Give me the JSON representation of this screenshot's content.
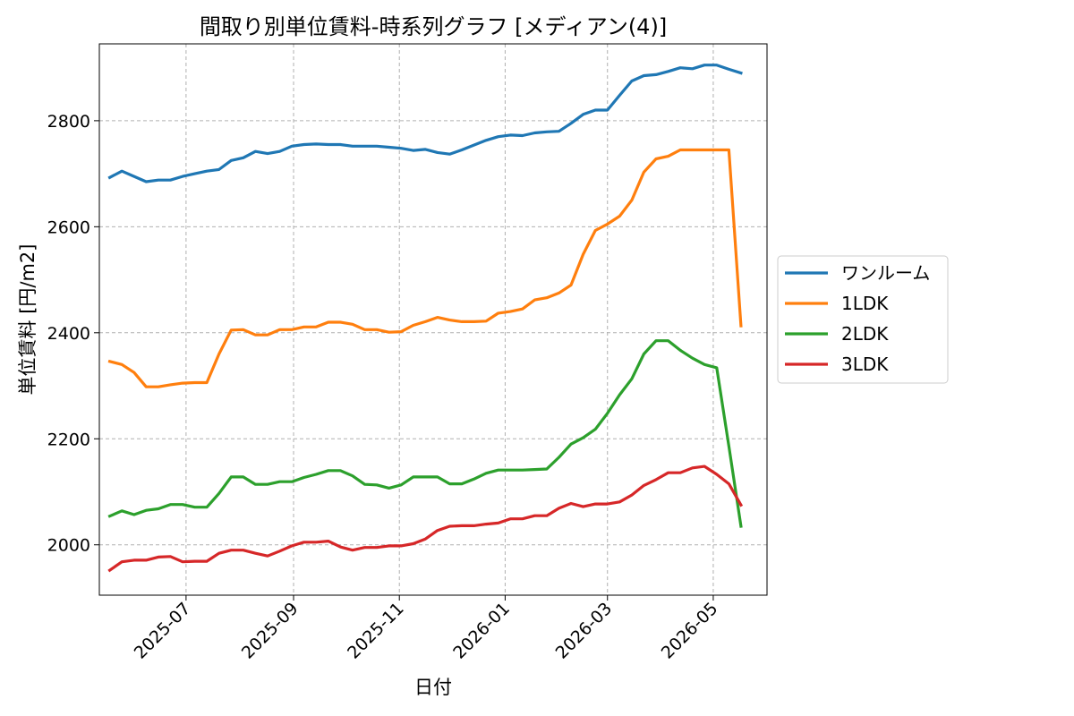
{
  "chart_data": {
    "type": "line",
    "title": "間取り別単位賃料-時系列グラフ [メディアン(4)]",
    "xlabel": "日付",
    "ylabel": "単位賃料 [円/m2]",
    "x_ticks": [
      "2025-07",
      "2025-09",
      "2025-11",
      "2026-01",
      "2026-03",
      "2026-05"
    ],
    "y_ticks": [
      2000,
      2200,
      2400,
      2600,
      2800
    ],
    "ylim": [
      1905,
      2945
    ],
    "xlim": [
      "2025-05-12",
      "2026-06-01"
    ],
    "grid": true,
    "legend_position": "right-outside",
    "x": [
      "2025-05-18",
      "2025-05-25",
      "2025-06-01",
      "2025-06-08",
      "2025-06-15",
      "2025-06-22",
      "2025-06-29",
      "2025-07-06",
      "2025-07-13",
      "2025-07-20",
      "2025-07-27",
      "2025-08-03",
      "2025-08-10",
      "2025-08-17",
      "2025-08-24",
      "2025-08-31",
      "2025-09-07",
      "2025-09-14",
      "2025-09-21",
      "2025-09-28",
      "2025-10-05",
      "2025-10-12",
      "2025-10-19",
      "2025-10-26",
      "2025-11-02",
      "2025-11-09",
      "2025-11-16",
      "2025-11-23",
      "2025-11-30",
      "2025-12-07",
      "2025-12-14",
      "2025-12-21",
      "2025-12-28",
      "2026-01-04",
      "2026-01-11",
      "2026-01-18",
      "2026-01-25",
      "2026-02-01",
      "2026-02-08",
      "2026-02-15",
      "2026-02-22",
      "2026-03-01",
      "2026-03-08",
      "2026-03-15",
      "2026-03-22",
      "2026-03-29",
      "2026-04-05",
      "2026-04-12",
      "2026-04-19",
      "2026-04-26",
      "2026-05-03",
      "2026-05-10",
      "2026-05-17"
    ],
    "series": [
      {
        "name": "ワンルーム",
        "color": "#1f77b4",
        "values": [
          2693,
          2705,
          2695,
          2685,
          2688,
          2688,
          2695,
          2700,
          2705,
          2708,
          2725,
          2730,
          2742,
          2738,
          2742,
          2752,
          2755,
          2756,
          2755,
          2755,
          2752,
          2752,
          2752,
          2750,
          2748,
          2744,
          2746,
          2740,
          2737,
          2745,
          2754,
          2763,
          2770,
          2773,
          2772,
          2777,
          2779,
          2780,
          2795,
          2812,
          2820,
          2820,
          2848,
          2875,
          2885,
          2887,
          2893,
          2900,
          2898,
          2905,
          2905,
          2897,
          2890
        ]
      },
      {
        "name": "1LDK",
        "color": "#ff7f0e",
        "values": [
          2346,
          2340,
          2325,
          2298,
          2298,
          2302,
          2305,
          2306,
          2306,
          2360,
          2405,
          2406,
          2396,
          2396,
          2406,
          2406,
          2411,
          2411,
          2420,
          2420,
          2416,
          2406,
          2406,
          2401,
          2402,
          2414,
          2421,
          2429,
          2424,
          2421,
          2421,
          2422,
          2437,
          2440,
          2445,
          2462,
          2466,
          2475,
          2490,
          2548,
          2593,
          2605,
          2620,
          2650,
          2703,
          2728,
          2733,
          2745,
          2745,
          2745,
          2745,
          2745,
          2413
        ]
      },
      {
        "name": "2LDK",
        "color": "#2ca02c",
        "values": [
          2054,
          2064,
          2057,
          2065,
          2068,
          2076,
          2076,
          2071,
          2071,
          2097,
          2128,
          2128,
          2114,
          2114,
          2119,
          2119,
          2127,
          2133,
          2140,
          2140,
          2130,
          2114,
          2113,
          2107,
          2113,
          2128,
          2128,
          2128,
          2115,
          2115,
          2124,
          2135,
          2141,
          2141,
          2141,
          2142,
          2143,
          2165,
          2190,
          2202,
          2218,
          2248,
          2283,
          2313,
          2360,
          2385,
          2385,
          2367,
          2352,
          2340,
          2334,
          2186,
          2035
        ]
      },
      {
        "name": "3LDK",
        "color": "#d62728",
        "values": [
          1952,
          1968,
          1971,
          1971,
          1977,
          1978,
          1968,
          1969,
          1969,
          1984,
          1990,
          1990,
          1984,
          1979,
          1988,
          1998,
          2005,
          2005,
          2007,
          1996,
          1990,
          1995,
          1995,
          1998,
          1998,
          2002,
          2011,
          2027,
          2035,
          2036,
          2036,
          2039,
          2041,
          2049,
          2049,
          2055,
          2055,
          2069,
          2078,
          2072,
          2077,
          2077,
          2081,
          2094,
          2112,
          2123,
          2136,
          2136,
          2145,
          2148,
          2133,
          2115,
          2075
        ]
      }
    ]
  }
}
